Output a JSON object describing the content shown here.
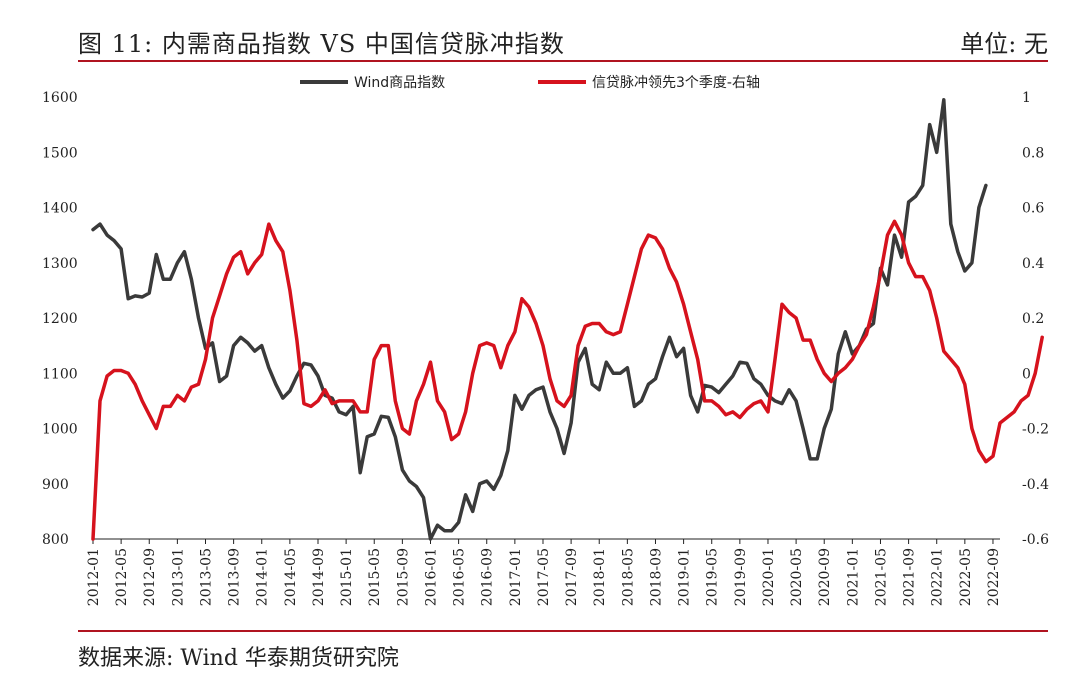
{
  "header": {
    "title": "图 11:   内需商品指数  VS  中国信贷脉冲指数",
    "unit": "单位: 无"
  },
  "footer": {
    "source": "数据来源: Wind 华泰期货研究院"
  },
  "colors": {
    "accent_rule": "#b01420",
    "series_wind": "#3a3a3a",
    "series_credit": "#d6121d"
  },
  "chart_data": {
    "type": "line",
    "left_axis": {
      "ylim": [
        800,
        1600
      ],
      "ticks": [
        "800",
        "900",
        "1000",
        "1100",
        "1200",
        "1300",
        "1400",
        "1500",
        "1600"
      ]
    },
    "right_axis": {
      "ylim": [
        -0.6,
        1.0
      ],
      "ticks": [
        "-0.6",
        "-0.4",
        "-0.2",
        "0",
        "0.2",
        "0.4",
        "0.6",
        "0.8",
        "1"
      ]
    },
    "x_range": [
      "2012-01",
      "2022-10"
    ],
    "x_tick_labels": [
      "2012-01",
      "2012-05",
      "2012-09",
      "2013-01",
      "2013-05",
      "2013-09",
      "2014-01",
      "2014-05",
      "2014-09",
      "2015-01",
      "2015-05",
      "2015-09",
      "2016-01",
      "2016-05",
      "2016-09",
      "2017-01",
      "2017-05",
      "2017-09",
      "2018-01",
      "2018-05",
      "2018-09",
      "2019-01",
      "2019-05",
      "2019-09",
      "2020-01",
      "2020-05",
      "2020-09",
      "2021-01",
      "2021-05",
      "2021-09",
      "2022-01",
      "2022-05",
      "2022-09"
    ],
    "legend_position": "top-center",
    "grid": false,
    "series": [
      {
        "name": "Wind商品指数",
        "axis": "left",
        "color": "#3a3a3a",
        "start": "2012-01",
        "values": [
          1360,
          1370,
          1350,
          1340,
          1325,
          1235,
          1240,
          1238,
          1245,
          1315,
          1270,
          1270,
          1300,
          1320,
          1270,
          1200,
          1145,
          1155,
          1085,
          1095,
          1150,
          1165,
          1155,
          1140,
          1150,
          1110,
          1080,
          1055,
          1068,
          1095,
          1118,
          1115,
          1095,
          1060,
          1055,
          1030,
          1025,
          1040,
          920,
          985,
          990,
          1022,
          1020,
          985,
          925,
          905,
          895,
          875,
          800,
          825,
          815,
          815,
          830,
          880,
          850,
          900,
          905,
          890,
          915,
          960,
          1060,
          1035,
          1060,
          1070,
          1075,
          1030,
          1000,
          955,
          1010,
          1120,
          1145,
          1080,
          1070,
          1120,
          1100,
          1100,
          1110,
          1040,
          1050,
          1080,
          1090,
          1130,
          1165,
          1130,
          1145,
          1060,
          1030,
          1078,
          1075,
          1065,
          1080,
          1095,
          1120,
          1118,
          1090,
          1080,
          1060,
          1050,
          1045,
          1070,
          1050,
          1000,
          945,
          945,
          1000,
          1035,
          1135,
          1175,
          1135,
          1150,
          1180,
          1190,
          1290,
          1260,
          1350,
          1310,
          1410,
          1420,
          1440,
          1550,
          1500,
          1595,
          1370,
          1320,
          1285,
          1300,
          1400,
          1440
        ]
      },
      {
        "name": "信贷脉冲领先3个季度-右轴",
        "axis": "right",
        "color": "#d6121d",
        "start": "2012-01",
        "values": [
          -0.6,
          -0.1,
          -0.01,
          0.01,
          0.01,
          0.0,
          -0.04,
          -0.1,
          -0.15,
          -0.2,
          -0.12,
          -0.12,
          -0.08,
          -0.1,
          -0.05,
          -0.04,
          0.05,
          0.2,
          0.28,
          0.36,
          0.42,
          0.44,
          0.36,
          0.4,
          0.43,
          0.54,
          0.48,
          0.44,
          0.3,
          0.12,
          -0.11,
          -0.12,
          -0.1,
          -0.06,
          -0.11,
          -0.1,
          -0.1,
          -0.1,
          -0.14,
          -0.14,
          0.05,
          0.1,
          0.1,
          -0.1,
          -0.2,
          -0.22,
          -0.1,
          -0.04,
          0.04,
          -0.1,
          -0.14,
          -0.24,
          -0.22,
          -0.14,
          0.0,
          0.1,
          0.11,
          0.1,
          0.02,
          0.1,
          0.15,
          0.27,
          0.24,
          0.18,
          0.1,
          -0.02,
          -0.1,
          -0.12,
          -0.08,
          0.1,
          0.17,
          0.18,
          0.18,
          0.15,
          0.14,
          0.15,
          0.25,
          0.35,
          0.45,
          0.5,
          0.49,
          0.45,
          0.38,
          0.33,
          0.25,
          0.15,
          0.05,
          -0.1,
          -0.1,
          -0.12,
          -0.15,
          -0.14,
          -0.16,
          -0.13,
          -0.11,
          -0.1,
          -0.14,
          0.05,
          0.25,
          0.22,
          0.2,
          0.12,
          0.12,
          0.05,
          0.0,
          -0.03,
          0.0,
          0.02,
          0.05,
          0.1,
          0.14,
          0.24,
          0.36,
          0.5,
          0.55,
          0.5,
          0.4,
          0.35,
          0.35,
          0.3,
          0.2,
          0.08,
          0.05,
          0.02,
          -0.04,
          -0.2,
          -0.28,
          -0.32,
          -0.3,
          -0.18,
          -0.16,
          -0.14,
          -0.1,
          -0.08,
          0.0,
          0.13
        ]
      }
    ]
  }
}
